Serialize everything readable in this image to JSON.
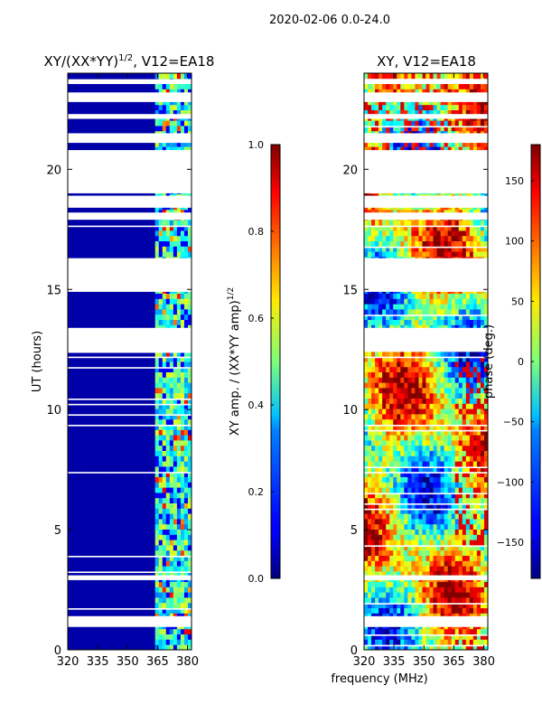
{
  "figure": {
    "suptitle": "2020-02-06 0.0-24.0",
    "shared_xlabel": "frequency (MHz)"
  },
  "chart_data": [
    {
      "type": "heatmap",
      "title": "XY/(XX*YY)",
      "title_exponent": "1/2",
      "title_suffix": ", V12=EA18",
      "ylabel": "UT (hours)",
      "xlabel": "frequency (MHz)",
      "xlim": [
        320,
        382
      ],
      "ylim": [
        0,
        24
      ],
      "xticks": [
        320,
        335,
        350,
        365,
        380
      ],
      "yticks": [
        0,
        5,
        10,
        15,
        20
      ],
      "colorbar": {
        "label": "XY amp. / (XX*YY amp)",
        "label_exponent": "1/2",
        "range": [
          0.0,
          1.0
        ],
        "ticks": [
          "0.0",
          "0.2",
          "0.4",
          "0.6",
          "0.8",
          "1.0"
        ],
        "colormap": "jet"
      },
      "flagged_ut_ranges": [
        [
          0.95,
          1.4
        ],
        [
          2.9,
          3.1
        ],
        [
          12.4,
          13.4
        ],
        [
          14.9,
          16.3
        ],
        [
          17.9,
          18.2
        ],
        [
          18.4,
          18.9
        ],
        [
          19.0,
          20.8
        ],
        [
          21.1,
          21.5
        ],
        [
          22.1,
          22.3
        ],
        [
          22.8,
          23.2
        ],
        [
          23.55,
          23.75
        ]
      ],
      "description_values": {
        "background_amplitude": 0.0,
        "band_amplitude_range": [
          0.3,
          0.6
        ],
        "band_start_mhz": 364
      }
    },
    {
      "type": "heatmap",
      "title": "XY, V12=EA18",
      "ylabel": "",
      "xlabel": "frequency (MHz)",
      "xlim": [
        320,
        382
      ],
      "ylim": [
        0,
        24
      ],
      "xticks": [
        320,
        335,
        350,
        365,
        380
      ],
      "yticks": [
        0,
        5,
        10,
        15,
        20
      ],
      "colorbar": {
        "label": "phase (deg.)",
        "range": [
          -180,
          180
        ],
        "ticks": [
          "−150",
          "−100",
          "−50",
          "0",
          "50",
          "100",
          "150"
        ],
        "colormap": "jet"
      },
      "flagged_ut_ranges": [
        [
          0.95,
          1.4
        ],
        [
          2.9,
          3.1
        ],
        [
          12.4,
          13.4
        ],
        [
          14.9,
          16.3
        ],
        [
          17.9,
          18.2
        ],
        [
          18.4,
          18.9
        ],
        [
          19.0,
          20.8
        ],
        [
          21.1,
          21.5
        ],
        [
          22.1,
          22.3
        ],
        [
          22.8,
          23.2
        ],
        [
          23.55,
          23.75
        ]
      ]
    }
  ]
}
